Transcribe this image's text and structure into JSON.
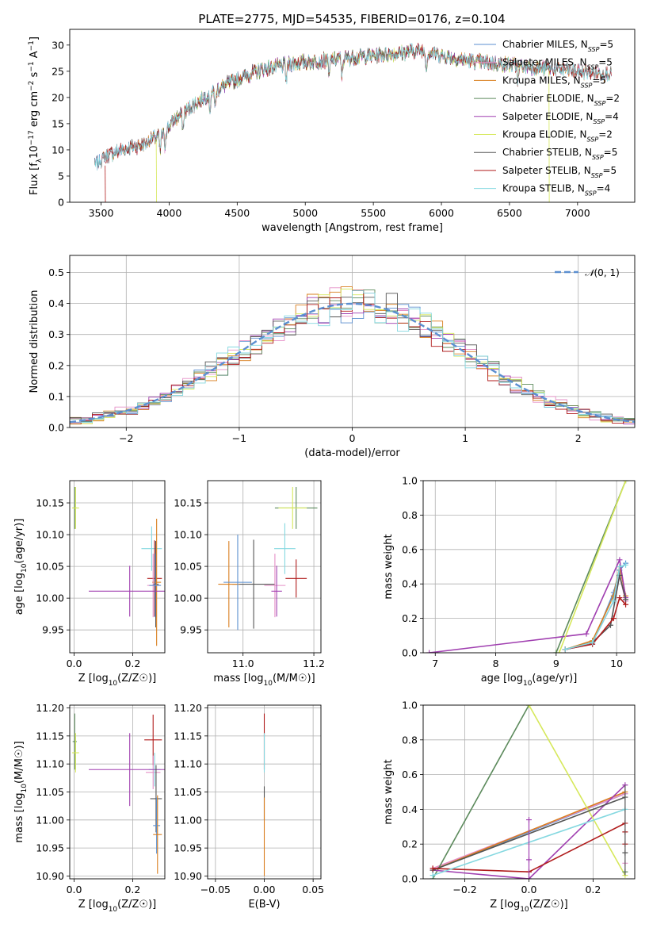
{
  "figure": {
    "title": "PLATE=2775, MJD=54535, FIBERID=0176, z=0.104"
  },
  "colors": {
    "chabrier_miles": "#5b8fd0",
    "salpeter_miles": "#e58fc7",
    "kroupa_miles": "#d97f1f",
    "chabrier_elodie": "#5c8a5c",
    "salpeter_elodie": "#a03fb0",
    "kroupa_elodie": "#d6e85b",
    "chabrier_stelib": "#555555",
    "salpeter_stelib": "#b01c1c",
    "kroupa_stelib": "#84d8e0",
    "gaussian": "#5b8fd0",
    "grid": "#b0b0b0"
  },
  "chart_data": [
    {
      "id": "spectrum",
      "type": "line",
      "title": "PLATE=2775, MJD=54535, FIBERID=0176, z=0.104",
      "xlabel": "wavelength [Angstrom, rest frame]",
      "ylabel": "Flux [f_λ 10^-17 erg cm^-2 s^-1 A^-1]",
      "xlim": [
        3270,
        7420
      ],
      "ylim": [
        0,
        33
      ],
      "xticks": [
        3500,
        4000,
        4500,
        5000,
        5500,
        6000,
        6500,
        7000
      ],
      "yticks": [
        0,
        5,
        10,
        15,
        20,
        25,
        30
      ],
      "grid": false,
      "legend_position": "top-right",
      "continuum_knots": {
        "x": [
          3450,
          3550,
          3650,
          3800,
          3950,
          4050,
          4200,
          4350,
          4500,
          4700,
          4900,
          5100,
          5300,
          5500,
          5700,
          5850,
          6000,
          6200,
          6400,
          6600,
          6800,
          7000,
          7250
        ],
        "y": [
          7,
          9,
          10,
          11,
          13,
          16,
          19,
          21.5,
          23.5,
          25.5,
          26.5,
          27,
          27.5,
          28,
          28.5,
          29,
          28,
          27,
          26.5,
          26,
          25.5,
          25,
          24.5
        ]
      },
      "series": [
        {
          "name": "Chabrier MILES, N_SSP=5",
          "label_main": "Chabrier MILES, N",
          "label_sub": "SSP",
          "label_tail": "=5",
          "color_key": "chabrier_miles"
        },
        {
          "name": "Salpeter MILES, N_SSP=5",
          "label_main": "Salpeter MILES, N",
          "label_sub": "SSP",
          "label_tail": "=5",
          "color_key": "salpeter_miles"
        },
        {
          "name": "Kroupa MILES, N_SSP=5",
          "label_main": "Kroupa MILES, N",
          "label_sub": "SSP",
          "label_tail": "=5",
          "color_key": "kroupa_miles"
        },
        {
          "name": "Chabrier ELODIE, N_SSP=2",
          "label_main": "Chabrier ELODIE, N",
          "label_sub": "SSP",
          "label_tail": "=2",
          "color_key": "chabrier_elodie"
        },
        {
          "name": "Salpeter ELODIE, N_SSP=4",
          "label_main": "Salpeter ELODIE, N",
          "label_sub": "SSP",
          "label_tail": "=4",
          "color_key": "salpeter_elodie"
        },
        {
          "name": "Kroupa ELODIE, N_SSP=2",
          "label_main": "Kroupa ELODIE, N",
          "label_sub": "SSP",
          "label_tail": "=2",
          "color_key": "kroupa_elodie"
        },
        {
          "name": "Chabrier STELIB, N_SSP=5",
          "label_main": "Chabrier STELIB, N",
          "label_sub": "SSP",
          "label_tail": "=5",
          "color_key": "chabrier_stelib"
        },
        {
          "name": "Salpeter STELIB, N_SSP=5",
          "label_main": "Salpeter STELIB, N",
          "label_sub": "SSP",
          "label_tail": "=5",
          "color_key": "salpeter_stelib"
        },
        {
          "name": "Kroupa STELIB, N_SSP=4",
          "label_main": "Kroupa STELIB, N",
          "label_sub": "SSP",
          "label_tail": "=4",
          "color_key": "kroupa_stelib"
        }
      ],
      "series_ranges": [
        [
          3450,
          7250
        ],
        [
          3450,
          7250
        ],
        [
          3500,
          7250
        ],
        [
          3900,
          6800
        ],
        [
          3900,
          6800
        ],
        [
          3900,
          6800
        ],
        [
          3450,
          7250
        ],
        [
          3500,
          7250
        ],
        [
          3450,
          7250
        ]
      ]
    },
    {
      "id": "residuals",
      "type": "line",
      "xlabel": "(data-model)/error",
      "ylabel": "Normed distribution",
      "xlim": [
        -2.5,
        2.5
      ],
      "ylim": [
        0,
        0.555
      ],
      "xticks": [
        -2,
        -1,
        0,
        1,
        2
      ],
      "yticks": [
        0.0,
        0.1,
        0.2,
        0.3,
        0.4,
        0.5
      ],
      "ytick_labels": [
        "0.0",
        "0.1",
        "0.2",
        "0.3",
        "0.4",
        "0.5"
      ],
      "xtick_labels": [
        "−2",
        "−1",
        "0",
        "1",
        "2"
      ],
      "grid": true,
      "legend_position": "top-right",
      "reference_label": "N(0, 1)",
      "reference_label_main": "𝒩",
      "reference_label_tail": "(0, 1)",
      "bin_width": 0.1,
      "bin_start": -2.5
    },
    {
      "id": "age_vs_Z",
      "type": "scatter",
      "xlabel": "Z [log10(Z/Z☉)]",
      "xlabel_main": "Z [log",
      "xlabel_sub": "10",
      "xlabel_tail": "(Z/Z☉)]",
      "ylabel": "age [log10(age/yr)]",
      "ylabel_main": "age  [log",
      "ylabel_sub": "10",
      "ylabel_tail": "(age/yr)]",
      "xlim": [
        -0.015,
        0.31
      ],
      "ylim": [
        9.914,
        10.185
      ],
      "xticks": [
        0.0,
        0.2
      ],
      "xtick_labels": [
        "0.0",
        "0.2"
      ],
      "yticks": [
        9.95,
        10.0,
        10.05,
        10.1,
        10.15
      ],
      "ytick_labels": [
        "9.95",
        "10.00",
        "10.05",
        "10.10",
        "10.15"
      ],
      "grid": true,
      "points": [
        {
          "x": 0.002,
          "y": 10.142,
          "xerr": 0.007,
          "yerr": 0.033,
          "color_key": "chabrier_elodie"
        },
        {
          "x": 0.005,
          "y": 10.142,
          "xerr": 0.012,
          "yerr": 0.033,
          "color_key": "kroupa_elodie"
        },
        {
          "x": 0.265,
          "y": 10.078,
          "xerr": 0.035,
          "yerr": 0.035,
          "color_key": "kroupa_stelib"
        },
        {
          "x": 0.275,
          "y": 10.031,
          "xerr": 0.025,
          "yerr": 0.06,
          "color_key": "salpeter_stelib"
        },
        {
          "x": 0.279,
          "y": 10.022,
          "xerr": 0.01,
          "yerr": 0.068,
          "color_key": "chabrier_stelib"
        },
        {
          "x": 0.282,
          "y": 10.025,
          "xerr": 0.015,
          "yerr": 0.1,
          "color_key": "kroupa_miles"
        },
        {
          "x": 0.27,
          "y": 10.02,
          "xerr": 0.02,
          "yerr": 0.05,
          "color_key": "salpeter_miles"
        },
        {
          "x": 0.277,
          "y": 10.02,
          "xerr": 0.02,
          "yerr": 0.05,
          "color_key": "chabrier_miles"
        },
        {
          "x": 0.19,
          "y": 10.011,
          "xerr": 0.14,
          "yerr": 0.04,
          "color_key": "salpeter_elodie"
        }
      ]
    },
    {
      "id": "age_vs_mass",
      "type": "scatter",
      "xlabel": "mass [log10(M/M☉)]",
      "xlabel_main": "mass [log",
      "xlabel_sub": "10",
      "xlabel_tail": "(M/M☉)]",
      "xlim": [
        10.9,
        11.22
      ],
      "ylim": [
        9.914,
        10.185
      ],
      "xticks": [
        11.0,
        11.2
      ],
      "xtick_labels": [
        "11.0",
        "11.2"
      ],
      "yticks": [
        9.95,
        10.0,
        10.05,
        10.1,
        10.15
      ],
      "ytick_labels": [
        "9.95",
        "10.00",
        "10.05",
        "10.10",
        "10.15"
      ],
      "grid": true,
      "points": [
        {
          "x": 11.15,
          "y": 10.142,
          "xerr": 0.06,
          "yerr": 0.033,
          "color_key": "chabrier_elodie"
        },
        {
          "x": 11.14,
          "y": 10.142,
          "xerr": 0.04,
          "yerr": 0.033,
          "color_key": "kroupa_elodie"
        },
        {
          "x": 11.118,
          "y": 10.078,
          "xerr": 0.03,
          "yerr": 0.04,
          "color_key": "kroupa_stelib"
        },
        {
          "x": 11.15,
          "y": 10.031,
          "xerr": 0.03,
          "yerr": 0.03,
          "color_key": "salpeter_stelib"
        },
        {
          "x": 11.03,
          "y": 10.022,
          "xerr": 0.06,
          "yerr": 0.07,
          "color_key": "chabrier_stelib"
        },
        {
          "x": 10.96,
          "y": 10.022,
          "xerr": 0.03,
          "yerr": 0.068,
          "color_key": "kroupa_miles"
        },
        {
          "x": 11.09,
          "y": 10.02,
          "xerr": 0.03,
          "yerr": 0.05,
          "color_key": "salpeter_miles"
        },
        {
          "x": 10.985,
          "y": 10.025,
          "xerr": 0.04,
          "yerr": 0.075,
          "color_key": "chabrier_miles"
        },
        {
          "x": 11.095,
          "y": 10.011,
          "xerr": 0.015,
          "yerr": 0.04,
          "color_key": "salpeter_elodie"
        }
      ]
    },
    {
      "id": "weight_vs_age",
      "type": "line",
      "xlabel": "age [log10(age/yr)]",
      "xlabel_main": "age  [log",
      "xlabel_sub": "10",
      "xlabel_tail": "(age/yr)]",
      "ylabel": "mass weight",
      "xlim": [
        6.8,
        10.3
      ],
      "ylim": [
        0,
        1.0
      ],
      "xticks": [
        7,
        8,
        9,
        10
      ],
      "yticks": [
        0.0,
        0.2,
        0.4,
        0.6,
        0.8,
        1.0
      ],
      "ytick_labels": [
        "0.0",
        "0.2",
        "0.4",
        "0.6",
        "0.8",
        "1.0"
      ],
      "grid": true,
      "series": [
        {
          "color_key": "chabrier_miles",
          "x": [
            9.15,
            9.6,
            9.95,
            10.05,
            10.15
          ],
          "y": [
            0.02,
            0.05,
            0.35,
            0.48,
            0.52
          ]
        },
        {
          "color_key": "salpeter_miles",
          "x": [
            9.15,
            9.6,
            9.95,
            10.05,
            10.15
          ],
          "y": [
            0.02,
            0.06,
            0.3,
            0.45,
            0.3
          ]
        },
        {
          "color_key": "kroupa_miles",
          "x": [
            9.15,
            9.6,
            9.95,
            10.05,
            10.15
          ],
          "y": [
            0.02,
            0.07,
            0.33,
            0.5,
            0.33
          ]
        },
        {
          "color_key": "chabrier_elodie",
          "x": [
            9.0,
            10.15
          ],
          "y": [
            0.0,
            1.0
          ]
        },
        {
          "color_key": "salpeter_elodie",
          "x": [
            6.9,
            9.5,
            10.05,
            10.15
          ],
          "y": [
            0.0,
            0.11,
            0.54,
            0.32
          ]
        },
        {
          "color_key": "kroupa_elodie",
          "x": [
            9.05,
            10.15
          ],
          "y": [
            0.0,
            1.0
          ]
        },
        {
          "color_key": "chabrier_stelib",
          "x": [
            9.15,
            9.6,
            9.9,
            10.05,
            10.15
          ],
          "y": [
            0.02,
            0.06,
            0.16,
            0.45,
            0.31
          ]
        },
        {
          "color_key": "salpeter_stelib",
          "x": [
            9.15,
            9.6,
            9.95,
            10.05,
            10.15
          ],
          "y": [
            0.02,
            0.05,
            0.2,
            0.32,
            0.28
          ]
        },
        {
          "color_key": "kroupa_stelib",
          "x": [
            9.15,
            9.6,
            9.95,
            10.05,
            10.15
          ],
          "y": [
            0.02,
            0.06,
            0.3,
            0.5,
            0.51
          ]
        }
      ]
    },
    {
      "id": "mass_vs_Z",
      "type": "scatter",
      "xlabel": "Z [log10(Z/Z☉)]",
      "xlabel_main": "Z [log",
      "xlabel_sub": "10",
      "xlabel_tail": "(Z/Z☉)]",
      "ylabel": "mass [log10(M/M☉)]",
      "ylabel_main": "mass [log",
      "ylabel_sub": "10",
      "ylabel_tail": "(M/M☉)]",
      "xlim": [
        -0.015,
        0.31
      ],
      "ylim": [
        10.895,
        11.205
      ],
      "xticks": [
        0.0,
        0.2
      ],
      "xtick_labels": [
        "0.0",
        "0.2"
      ],
      "yticks": [
        10.9,
        10.95,
        11.0,
        11.05,
        11.1,
        11.15,
        11.2
      ],
      "ytick_labels": [
        "10.90",
        "10.95",
        "11.00",
        "11.05",
        "11.10",
        "11.15",
        "11.20"
      ],
      "grid": true,
      "points": [
        {
          "x": 0.002,
          "y": 11.14,
          "xerr": 0.007,
          "yerr": 0.05,
          "color_key": "chabrier_elodie"
        },
        {
          "x": 0.005,
          "y": 11.12,
          "xerr": 0.012,
          "yerr": 0.035,
          "color_key": "kroupa_elodie"
        },
        {
          "x": 0.27,
          "y": 11.143,
          "xerr": 0.03,
          "yerr": 0.045,
          "color_key": "salpeter_stelib"
        },
        {
          "x": 0.27,
          "y": 11.085,
          "xerr": 0.025,
          "yerr": 0.03,
          "color_key": "salpeter_miles"
        },
        {
          "x": 0.275,
          "y": 11.09,
          "xerr": 0.02,
          "yerr": 0.03,
          "color_key": "kroupa_stelib"
        },
        {
          "x": 0.19,
          "y": 11.09,
          "xerr": 0.14,
          "yerr": 0.065,
          "color_key": "salpeter_elodie"
        },
        {
          "x": 0.28,
          "y": 11.038,
          "xerr": 0.02,
          "yerr": 0.06,
          "color_key": "chabrier_stelib"
        },
        {
          "x": 0.282,
          "y": 10.99,
          "xerr": 0.012,
          "yerr": 0.05,
          "color_key": "chabrier_miles"
        },
        {
          "x": 0.285,
          "y": 10.974,
          "xerr": 0.015,
          "yerr": 0.07,
          "color_key": "kroupa_miles"
        }
      ]
    },
    {
      "id": "mass_vs_ebv",
      "type": "scatter",
      "xlabel": "E(B-V)",
      "xlim": [
        -0.058,
        0.058
      ],
      "ylim": [
        10.895,
        11.205
      ],
      "xticks": [
        -0.05,
        0.0,
        0.05
      ],
      "xtick_labels": [
        "−0.05",
        "0.00",
        "0.05"
      ],
      "yticks": [
        10.9,
        10.95,
        11.0,
        11.05,
        11.1,
        11.15,
        11.2
      ],
      "ytick_labels": [
        "10.90",
        "10.95",
        "11.00",
        "11.05",
        "11.10",
        "11.15",
        "11.20"
      ],
      "grid": true,
      "points": [
        {
          "x": 0.0,
          "y": 11.14,
          "xerr": 0.0,
          "yerr": 0.05,
          "color_key": "salpeter_stelib"
        },
        {
          "x": 0.0,
          "y": 11.12,
          "xerr": 0.0,
          "yerr": 0.035,
          "color_key": "kroupa_stelib"
        },
        {
          "x": 0.0,
          "y": 11.03,
          "xerr": 0.0,
          "yerr": 0.03,
          "color_key": "chabrier_stelib"
        },
        {
          "x": 0.0,
          "y": 10.97,
          "xerr": 0.0,
          "yerr": 0.07,
          "color_key": "kroupa_miles"
        }
      ]
    },
    {
      "id": "weight_vs_Z",
      "type": "line",
      "xlabel": "Z [log10(Z/Z☉)]",
      "xlabel_main": "Z [log",
      "xlabel_sub": "10",
      "xlabel_tail": "(Z/Z☉)]",
      "ylabel": "mass weight",
      "xlim": [
        -0.33,
        0.33
      ],
      "ylim": [
        0,
        1.0
      ],
      "xticks": [
        -0.2,
        0.0,
        0.2
      ],
      "xtick_labels": [
        "−0.2",
        "0.0",
        "0.2"
      ],
      "yticks": [
        0.0,
        0.2,
        0.4,
        0.6,
        0.8,
        1.0
      ],
      "ytick_labels": [
        "0.0",
        "0.2",
        "0.4",
        "0.6",
        "0.8",
        "1.0"
      ],
      "grid": true,
      "series": [
        {
          "color_key": "chabrier_miles",
          "x": [
            -0.3,
            0.3
          ],
          "y": [
            0.05,
            0.49
          ]
        },
        {
          "color_key": "salpeter_miles",
          "x": [
            -0.3,
            0.3
          ],
          "y": [
            0.06,
            0.49
          ]
        },
        {
          "color_key": "kroupa_miles",
          "x": [
            -0.3,
            0.3
          ],
          "y": [
            0.05,
            0.5
          ]
        },
        {
          "color_key": "chabrier_elodie",
          "x": [
            -0.3,
            0.0
          ],
          "y": [
            0.0,
            1.0
          ]
        },
        {
          "color_key": "salpeter_elodie",
          "x": [
            -0.3,
            0.0,
            0.3
          ],
          "y": [
            0.05,
            0.0,
            0.54
          ]
        },
        {
          "color_key": "kroupa_elodie",
          "x": [
            0.0,
            0.3
          ],
          "y": [
            1.0,
            0.02
          ]
        },
        {
          "color_key": "chabrier_stelib",
          "x": [
            -0.3,
            0.3
          ],
          "y": [
            0.05,
            0.47
          ]
        },
        {
          "color_key": "salpeter_stelib",
          "x": [
            -0.3,
            0.0,
            0.3
          ],
          "y": [
            0.06,
            0.04,
            0.32
          ]
        },
        {
          "color_key": "kroupa_stelib",
          "x": [
            -0.3,
            0.3
          ],
          "y": [
            0.02,
            0.4
          ]
        }
      ],
      "markers": [
        {
          "x": 0.0,
          "y": 0.34,
          "color_key": "salpeter_elodie"
        },
        {
          "x": 0.0,
          "y": 0.11,
          "color_key": "salpeter_elodie"
        },
        {
          "x": 0.3,
          "y": 0.2,
          "color_key": "salpeter_stelib"
        },
        {
          "x": 0.3,
          "y": 0.27,
          "color_key": "salpeter_stelib"
        },
        {
          "x": 0.3,
          "y": 0.09,
          "color_key": "salpeter_miles"
        },
        {
          "x": 0.3,
          "y": 0.15,
          "color_key": "chabrier_stelib"
        },
        {
          "x": 0.3,
          "y": 0.04,
          "color_key": "chabrier_elodie"
        }
      ]
    }
  ]
}
